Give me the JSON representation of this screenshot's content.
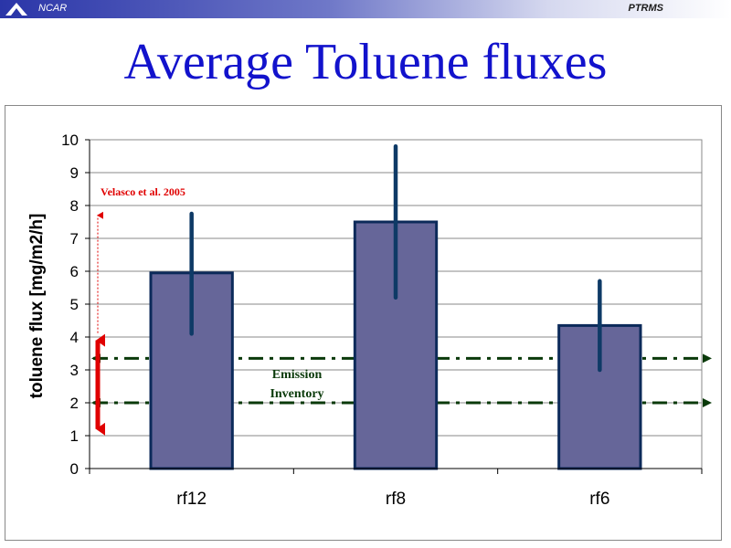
{
  "header": {
    "org": "NCAR",
    "project": "PTRMS"
  },
  "slide_title": "Average Toluene fluxes",
  "colors": {
    "bar_fill": "#666699",
    "bar_edge": "#0c2a5a",
    "error_bar": "#0e3a66",
    "inventory_line": "#0a3a0a",
    "velasco": "#e00000",
    "grid": "#8a8a8a"
  },
  "chart_data": {
    "type": "bar",
    "title": "",
    "xlabel": "",
    "ylabel": "toluene flux [mg/m2/h]",
    "categories": [
      "rf12",
      "rf8",
      "rf6"
    ],
    "values": [
      5.95,
      7.5,
      4.35
    ],
    "error_bars": [
      [
        4.1,
        7.75
      ],
      [
        5.2,
        9.8
      ],
      [
        3.0,
        5.7
      ]
    ],
    "ylim": [
      0,
      10
    ],
    "yticks": [
      "0",
      "1",
      "2",
      "3",
      "4",
      "5",
      "6",
      "7",
      "8",
      "9",
      "10"
    ],
    "grid": true,
    "reference_lines": [
      {
        "label": "Emission Inventory",
        "values": [
          3.35,
          2.0
        ]
      }
    ],
    "velasco": {
      "label": "Velasco et al. 2005",
      "range": [
        1.2,
        3.9
      ],
      "upper": 7.7
    },
    "annotations": [
      "Emission",
      "Inventory"
    ]
  }
}
